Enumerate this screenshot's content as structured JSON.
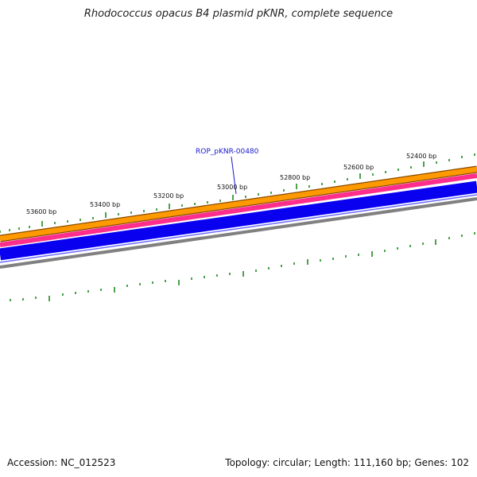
{
  "title": "Rhodococcus opacus B4 plasmid pKNR, complete sequence",
  "footer": {
    "accession": "Accession: NC_012523",
    "summary": "Topology: circular; Length: 111,160 bp; Genes: 102"
  },
  "gene_label": "ROP_pKNR-00480",
  "tick_labels": [
    "53600 bp",
    "53400 bp",
    "53200 bp",
    "53000 bp",
    "52800 bp",
    "52600 bp",
    "52400 bp"
  ],
  "colors": {
    "tick_green": "#1e8a1e",
    "track_orange": "#ff9900",
    "track_pink": "#ff2d8c",
    "track_blue": "#0a00f0",
    "track_gray": "#808080",
    "gene_label": "#1a1acc",
    "outline": "#8a4a00"
  }
}
